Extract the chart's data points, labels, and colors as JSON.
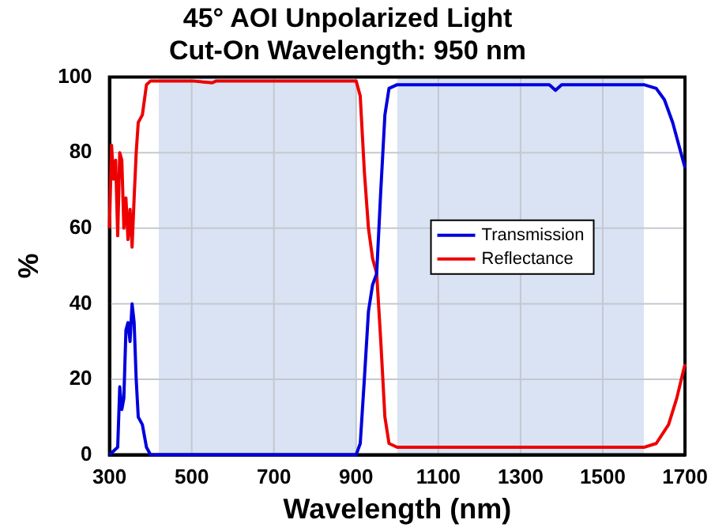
{
  "chart_data": {
    "type": "line",
    "title": "45° AOI Unpolarized Light",
    "subtitle": "Cut-On Wavelength: 950 nm",
    "xlabel": "Wavelength (nm)",
    "ylabel": "%",
    "xlim": [
      300,
      1700
    ],
    "xticks": [
      300,
      500,
      700,
      900,
      1100,
      1300,
      1500,
      1700
    ],
    "ylim": [
      0,
      100
    ],
    "yticks": [
      0,
      20,
      40,
      60,
      80,
      100
    ],
    "grid": true,
    "legend": "center",
    "marker": "none",
    "line_style": "solid",
    "bands": [
      {
        "axis": "x",
        "from": 420,
        "to": 900,
        "color": "#d9e3f3"
      },
      {
        "axis": "x",
        "from": 1000,
        "to": 1600,
        "color": "#d9e3f3"
      }
    ],
    "series": [
      {
        "name": "Transmission",
        "color": "#0000dd",
        "x": [
          300,
          310,
          320,
          325,
          330,
          335,
          340,
          345,
          350,
          355,
          360,
          365,
          370,
          380,
          390,
          400,
          500,
          900,
          910,
          920,
          930,
          940,
          950,
          960,
          970,
          980,
          1000,
          1200,
          1370,
          1385,
          1400,
          1600,
          1630,
          1650,
          1670,
          1690,
          1700
        ],
        "values": [
          0,
          1,
          2,
          18,
          12,
          15,
          33,
          35,
          30,
          40,
          35,
          20,
          10,
          8,
          2,
          0,
          0,
          0,
          3,
          20,
          38,
          45,
          48,
          70,
          90,
          97,
          98,
          98,
          98,
          96.5,
          98,
          98,
          97,
          94,
          88,
          80,
          76
        ]
      },
      {
        "name": "Reflectance",
        "color": "#ee0000",
        "x": [
          300,
          305,
          310,
          315,
          320,
          325,
          330,
          335,
          340,
          345,
          350,
          355,
          360,
          365,
          370,
          380,
          390,
          400,
          500,
          550,
          560,
          900,
          910,
          920,
          930,
          940,
          950,
          960,
          970,
          980,
          1000,
          1600,
          1630,
          1660,
          1680,
          1700
        ],
        "values": [
          60,
          82,
          73,
          78,
          58,
          80,
          78,
          60,
          68,
          57,
          65,
          55,
          68,
          80,
          88,
          90,
          98,
          99,
          99,
          98.5,
          99,
          99,
          95,
          75,
          60,
          52,
          48,
          30,
          10,
          3,
          2,
          2,
          3,
          8,
          15,
          24
        ]
      }
    ]
  }
}
